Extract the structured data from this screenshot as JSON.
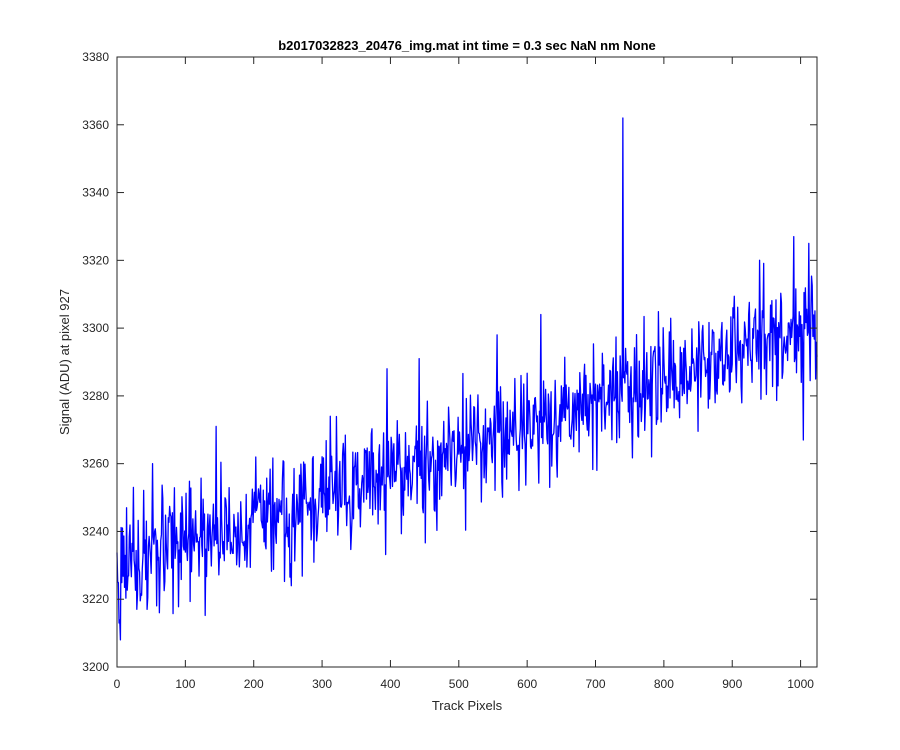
{
  "chart_data": {
    "type": "line",
    "title": "b2017032823_20476_img.mat int time = 0.3 sec  NaN nm None",
    "xlabel": "Track Pixels",
    "ylabel": "Signal (ADU) at pixel 927",
    "xlim": [
      0,
      1024
    ],
    "ylim": [
      3200,
      3380
    ],
    "xticks": [
      "0",
      "100",
      "200",
      "300",
      "400",
      "500",
      "600",
      "700",
      "800",
      "900",
      "1000"
    ],
    "yticks": [
      "3200",
      "3220",
      "3240",
      "3260",
      "3280",
      "3300",
      "3320",
      "3340",
      "3360",
      "3380"
    ],
    "grid": false,
    "line_color": "#0000ff",
    "trend": {
      "x": [
        0,
        1024
      ],
      "y": [
        3228,
        3302
      ]
    },
    "noise_amplitude": 8,
    "seed": 17,
    "outliers": [
      {
        "x": 3,
        "y": 3213
      },
      {
        "x": 5,
        "y": 3208
      },
      {
        "x": 8,
        "y": 3241
      },
      {
        "x": 14,
        "y": 3247
      },
      {
        "x": 24,
        "y": 3253
      },
      {
        "x": 44,
        "y": 3217
      },
      {
        "x": 52,
        "y": 3260
      },
      {
        "x": 62,
        "y": 3216
      },
      {
        "x": 145,
        "y": 3271
      },
      {
        "x": 255,
        "y": 3224
      },
      {
        "x": 312,
        "y": 3274
      },
      {
        "x": 395,
        "y": 3288
      },
      {
        "x": 442,
        "y": 3291
      },
      {
        "x": 556,
        "y": 3298
      },
      {
        "x": 620,
        "y": 3304
      },
      {
        "x": 633,
        "y": 3253
      },
      {
        "x": 740,
        "y": 3362
      },
      {
        "x": 782,
        "y": 3262
      },
      {
        "x": 940,
        "y": 3320
      },
      {
        "x": 990,
        "y": 3327
      },
      {
        "x": 1004,
        "y": 3267
      },
      {
        "x": 1012,
        "y": 3325
      }
    ]
  }
}
